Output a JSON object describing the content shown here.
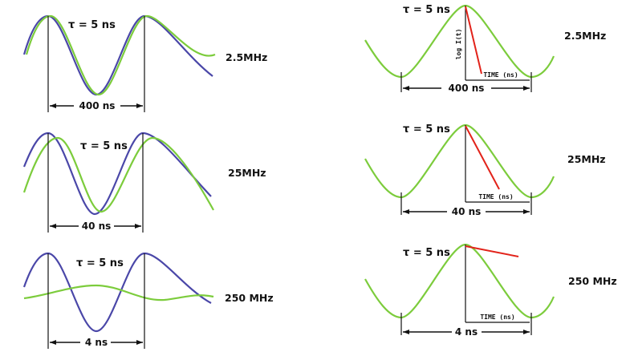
{
  "colors": {
    "excitation": "#4a47a8",
    "emission": "#7ccc3c",
    "decay": "#e2231a",
    "ink": "#111111"
  },
  "left_panels": [
    {
      "tau_label": "τ = 5 ns",
      "freq_label": "2.5MHz",
      "period_label": "400 ns",
      "emission_amplitude_fraction": 1.0
    },
    {
      "tau_label": "τ = 5 ns",
      "freq_label": "25MHz",
      "period_label": "40 ns",
      "emission_amplitude_fraction": 0.9
    },
    {
      "tau_label": "τ = 5 ns",
      "freq_label": "250 MHz",
      "period_label": "4 ns",
      "emission_amplitude_fraction": 0.2
    }
  ],
  "right_panels": [
    {
      "tau_label": "τ = 5 ns",
      "freq_label": "2.5MHz",
      "period_label": "400 ns",
      "time_label": "TIME (ns)",
      "log_label": "log I(t)"
    },
    {
      "tau_label": "τ = 5 ns",
      "freq_label": "25MHz",
      "period_label": "40 ns",
      "time_label": "TIME (ns)"
    },
    {
      "tau_label": "τ = 5 ns",
      "freq_label": "250 MHz",
      "period_label": "4 ns",
      "time_label": "TIME (ns)"
    }
  ]
}
